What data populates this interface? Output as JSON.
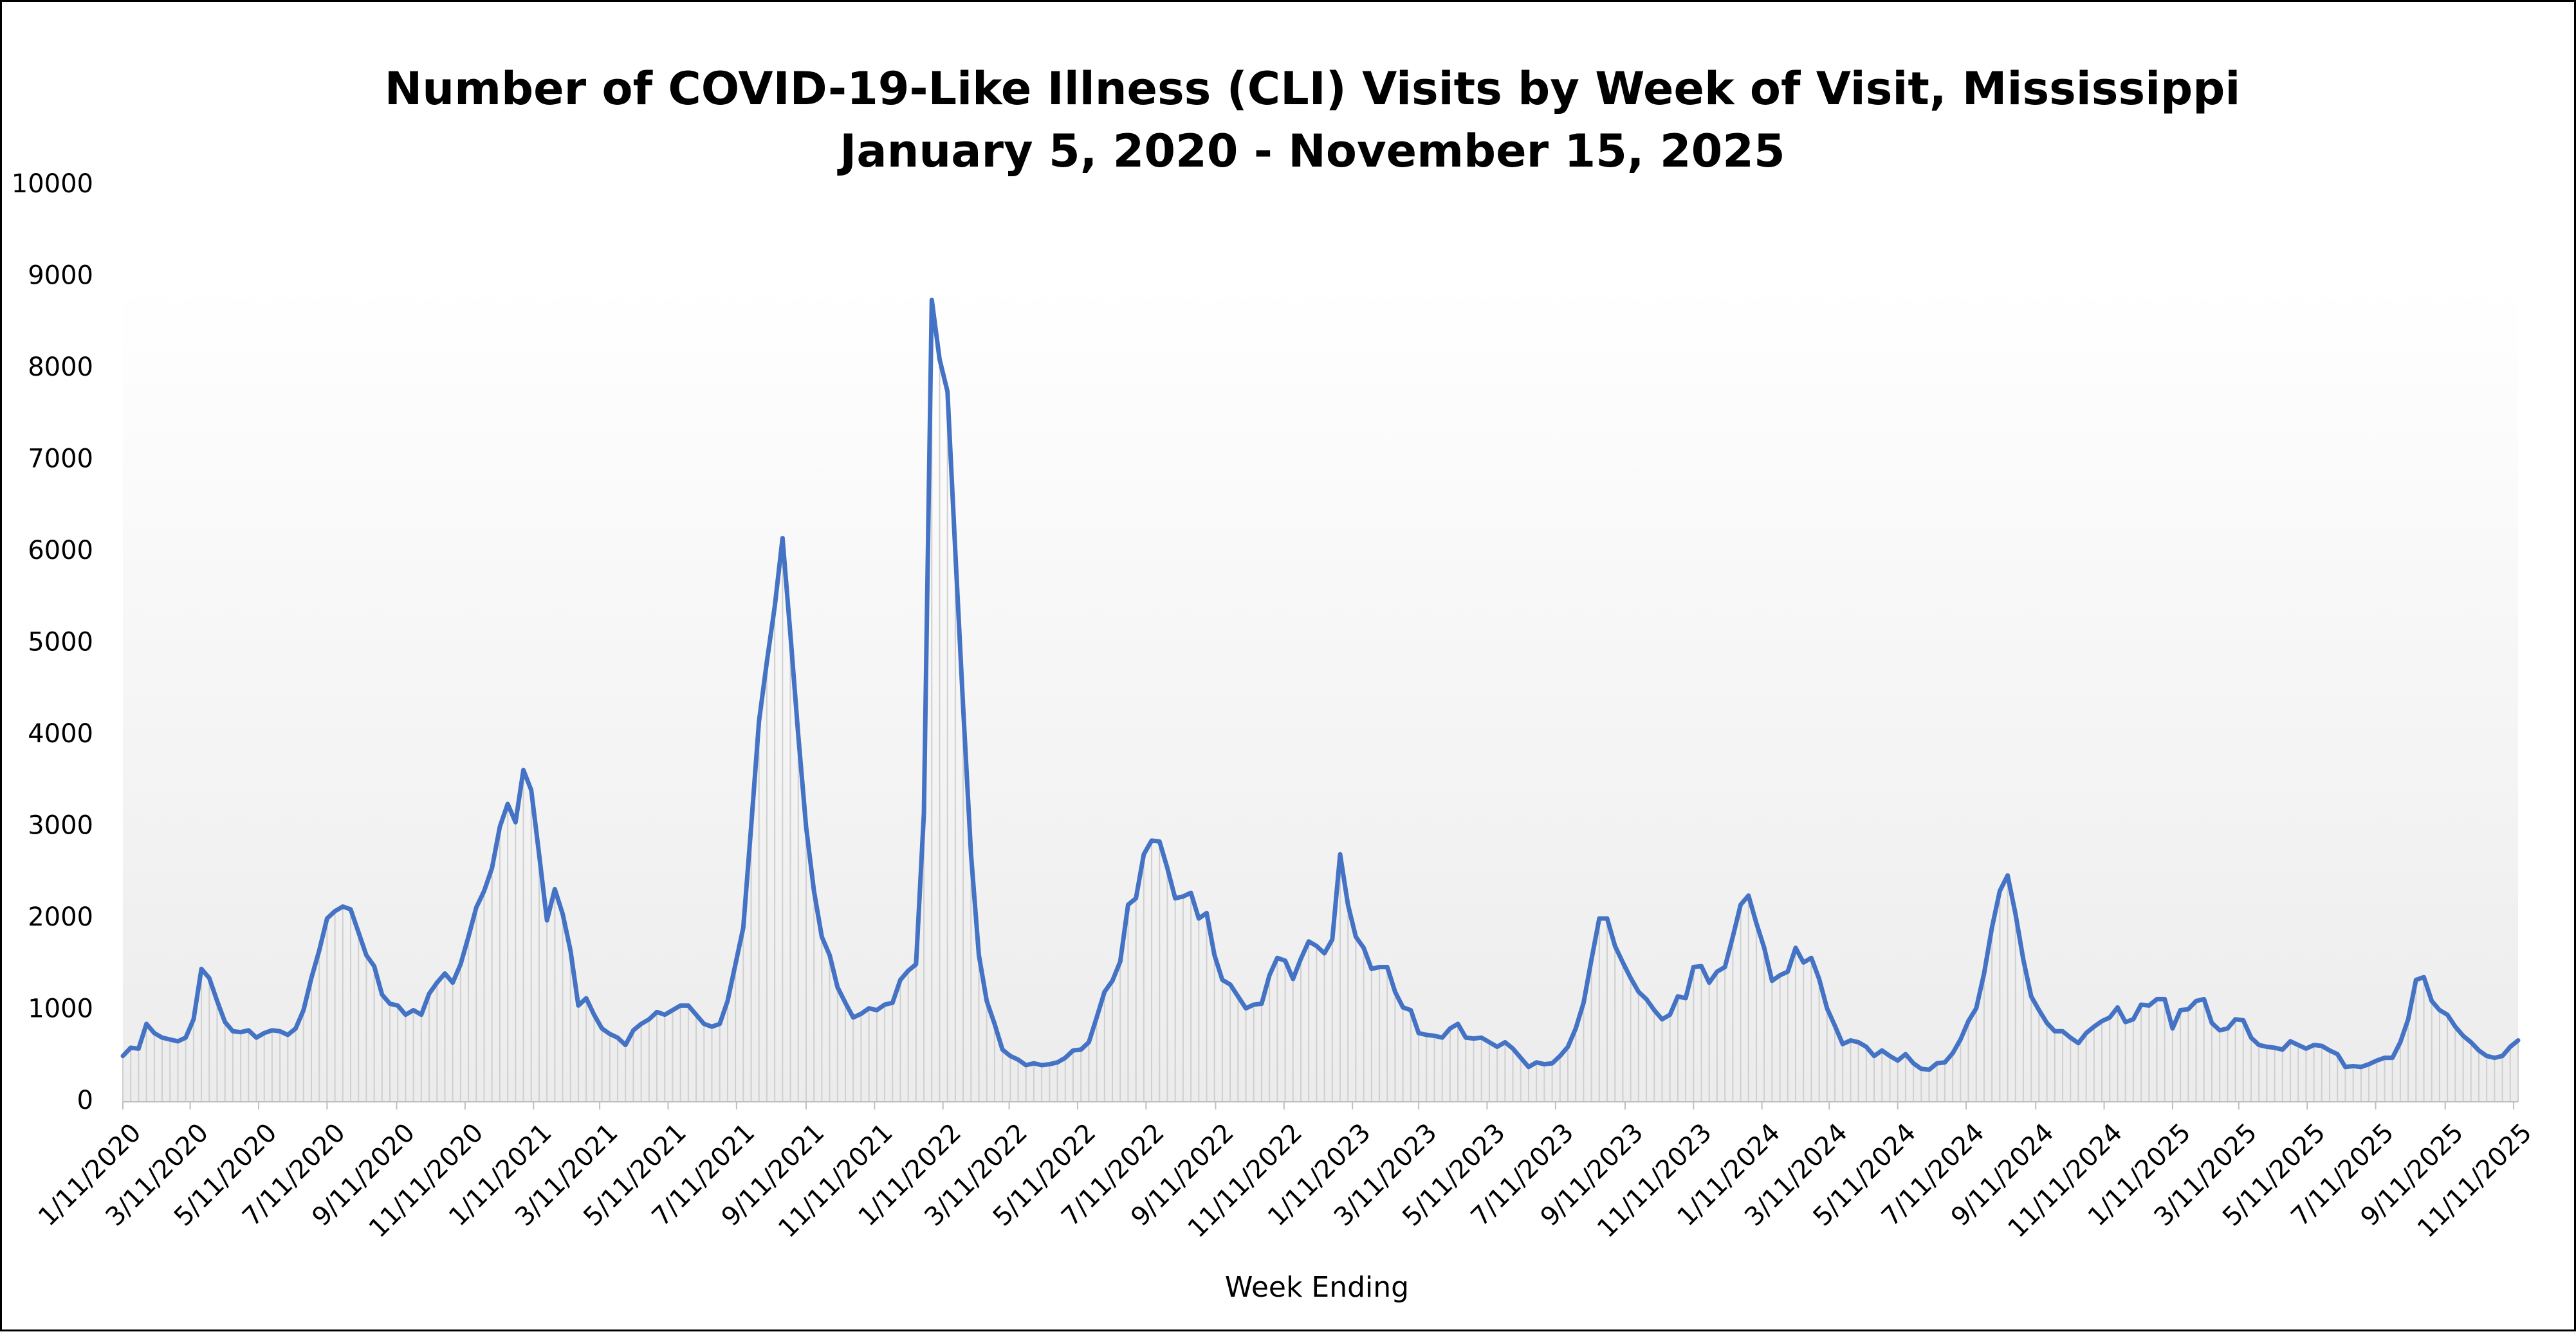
{
  "chart_data": {
    "type": "line",
    "title": "Number of COVID-19-Like Illness (CLI) Visits by Week of Visit, Mississippi",
    "subtitle": "January 5, 2020 - November 15, 2025",
    "x_axis_label": "Week Ending",
    "x": [
      "1/11/2020",
      "1/18/2020",
      "1/25/2020",
      "2/1/2020",
      "2/8/2020",
      "2/15/2020",
      "2/22/2020",
      "2/29/2020",
      "3/7/2020",
      "3/14/2020",
      "3/21/2020",
      "3/28/2020",
      "4/4/2020",
      "4/11/2020",
      "4/18/2020",
      "4/25/2020",
      "5/2/2020",
      "5/9/2020",
      "5/16/2020",
      "5/23/2020",
      "5/30/2020",
      "6/6/2020",
      "6/13/2020",
      "6/20/2020",
      "6/27/2020",
      "7/4/2020",
      "7/11/2020",
      "7/18/2020",
      "7/25/2020",
      "8/1/2020",
      "8/8/2020",
      "8/15/2020",
      "8/22/2020",
      "8/29/2020",
      "9/5/2020",
      "9/12/2020",
      "9/19/2020",
      "9/26/2020",
      "10/3/2020",
      "10/10/2020",
      "10/17/2020",
      "10/24/2020",
      "10/31/2020",
      "11/7/2020",
      "11/14/2020",
      "11/21/2020",
      "11/28/2020",
      "12/5/2020",
      "12/12/2020",
      "12/19/2020",
      "12/26/2020",
      "1/2/2021",
      "1/9/2021",
      "1/16/2021",
      "1/23/2021",
      "1/30/2021",
      "2/6/2021",
      "2/13/2021",
      "2/20/2021",
      "2/27/2021",
      "3/6/2021",
      "3/13/2021",
      "3/20/2021",
      "3/27/2021",
      "4/3/2021",
      "4/10/2021",
      "4/17/2021",
      "4/24/2021",
      "5/1/2021",
      "5/8/2021",
      "5/15/2021",
      "5/22/2021",
      "5/29/2021",
      "6/5/2021",
      "6/12/2021",
      "6/19/2021",
      "6/26/2021",
      "7/3/2021",
      "7/10/2021",
      "7/17/2021",
      "7/24/2021",
      "7/31/2021",
      "8/7/2021",
      "8/14/2021",
      "8/21/2021",
      "8/28/2021",
      "9/4/2021",
      "9/11/2021",
      "9/18/2021",
      "9/25/2021",
      "10/2/2021",
      "10/9/2021",
      "10/16/2021",
      "10/23/2021",
      "10/30/2021",
      "11/6/2021",
      "11/13/2021",
      "11/20/2021",
      "11/27/2021",
      "12/4/2021",
      "12/11/2021",
      "12/18/2021",
      "12/25/2021",
      "1/1/2022",
      "1/8/2022",
      "1/15/2022",
      "1/22/2022",
      "1/29/2022",
      "2/5/2022",
      "2/12/2022",
      "2/19/2022",
      "2/26/2022",
      "3/5/2022",
      "3/12/2022",
      "3/19/2022",
      "3/26/2022",
      "4/2/2022",
      "4/9/2022",
      "4/16/2022",
      "4/23/2022",
      "4/30/2022",
      "5/7/2022",
      "5/14/2022",
      "5/21/2022",
      "5/28/2022",
      "6/4/2022",
      "6/11/2022",
      "6/18/2022",
      "6/25/2022",
      "7/2/2022",
      "7/9/2022",
      "7/16/2022",
      "7/23/2022",
      "7/30/2022",
      "8/6/2022",
      "8/13/2022",
      "8/20/2022",
      "8/27/2022",
      "9/3/2022",
      "9/10/2022",
      "9/17/2022",
      "9/24/2022",
      "10/1/2022",
      "10/8/2022",
      "10/15/2022",
      "10/22/2022",
      "10/29/2022",
      "11/5/2022",
      "11/12/2022",
      "11/19/2022",
      "11/26/2022",
      "12/3/2022",
      "12/10/2022",
      "12/17/2022",
      "12/24/2022",
      "12/31/2022",
      "1/7/2023",
      "1/14/2023",
      "1/21/2023",
      "1/28/2023",
      "2/4/2023",
      "2/11/2023",
      "2/18/2023",
      "2/25/2023",
      "3/4/2023",
      "3/11/2023",
      "3/18/2023",
      "3/25/2023",
      "4/1/2023",
      "4/8/2023",
      "4/15/2023",
      "4/22/2023",
      "4/29/2023",
      "5/6/2023",
      "5/13/2023",
      "5/20/2023",
      "5/27/2023",
      "6/3/2023",
      "6/10/2023",
      "6/17/2023",
      "6/24/2023",
      "7/1/2023",
      "7/8/2023",
      "7/15/2023",
      "7/22/2023",
      "7/29/2023",
      "8/5/2023",
      "8/12/2023",
      "8/19/2023",
      "8/26/2023",
      "9/2/2023",
      "9/9/2023",
      "9/16/2023",
      "9/23/2023",
      "9/30/2023",
      "10/7/2023",
      "10/14/2023",
      "10/21/2023",
      "10/28/2023",
      "11/4/2023",
      "11/11/2023",
      "11/18/2023",
      "11/25/2023",
      "12/2/2023",
      "12/9/2023",
      "12/16/2023",
      "12/23/2023",
      "12/30/2023",
      "1/6/2024",
      "1/13/2024",
      "1/20/2024",
      "1/27/2024",
      "2/3/2024",
      "2/10/2024",
      "2/17/2024",
      "2/24/2024",
      "3/2/2024",
      "3/9/2024",
      "3/16/2024",
      "3/23/2024",
      "3/30/2024",
      "4/6/2024",
      "4/13/2024",
      "4/20/2024",
      "4/27/2024",
      "5/4/2024",
      "5/11/2024",
      "5/18/2024",
      "5/25/2024",
      "6/1/2024",
      "6/8/2024",
      "6/15/2024",
      "6/22/2024",
      "6/29/2024",
      "7/6/2024",
      "7/13/2024",
      "7/20/2024",
      "7/27/2024",
      "8/3/2024",
      "8/10/2024",
      "8/17/2024",
      "8/24/2024",
      "8/31/2024",
      "9/7/2024",
      "9/14/2024",
      "9/21/2024",
      "9/28/2024",
      "10/5/2024",
      "10/12/2024",
      "10/19/2024",
      "10/26/2024",
      "11/2/2024",
      "11/9/2024",
      "11/16/2024",
      "11/23/2024",
      "11/30/2024",
      "12/7/2024",
      "12/14/2024",
      "12/21/2024",
      "12/28/2024",
      "1/4/2025",
      "1/11/2025",
      "1/18/2025",
      "1/25/2025",
      "2/1/2025",
      "2/8/2025",
      "2/15/2025",
      "2/22/2025",
      "3/1/2025",
      "3/8/2025",
      "3/15/2025",
      "3/22/2025",
      "3/29/2025",
      "4/5/2025",
      "4/12/2025",
      "4/19/2025",
      "4/26/2025",
      "5/3/2025",
      "5/10/2025",
      "5/17/2025",
      "5/24/2025",
      "5/31/2025",
      "6/7/2025",
      "6/14/2025",
      "6/21/2025",
      "6/28/2025",
      "7/5/2025",
      "7/12/2025",
      "7/19/2025",
      "7/26/2025",
      "8/2/2025",
      "8/9/2025",
      "8/16/2025",
      "8/23/2025",
      "8/30/2025",
      "9/6/2025",
      "9/13/2025",
      "9/20/2025",
      "9/27/2025",
      "10/4/2025",
      "10/11/2025",
      "10/18/2025",
      "10/25/2025",
      "11/1/2025",
      "11/8/2025",
      "11/15/2025"
    ],
    "series": [
      {
        "name": "CLI Visits",
        "color": "#4472c4",
        "values": [
          500,
          590,
          580,
          850,
          750,
          700,
          680,
          660,
          700,
          900,
          1450,
          1350,
          1100,
          870,
          770,
          760,
          780,
          700,
          750,
          780,
          770,
          730,
          800,
          1000,
          1350,
          1650,
          2000,
          2080,
          2130,
          2100,
          1850,
          1600,
          1480,
          1170,
          1070,
          1050,
          950,
          1000,
          950,
          1180,
          1300,
          1400,
          1300,
          1500,
          1800,
          2120,
          2300,
          2550,
          3000,
          3250,
          3050,
          3620,
          3400,
          2700,
          1980,
          2320,
          2050,
          1650,
          1050,
          1130,
          950,
          800,
          740,
          700,
          620,
          780,
          850,
          900,
          980,
          950,
          1000,
          1050,
          1050,
          950,
          850,
          820,
          850,
          1100,
          1500,
          1900,
          3000,
          4150,
          4800,
          5400,
          6150,
          5100,
          4000,
          3000,
          2300,
          1800,
          1600,
          1250,
          1080,
          920,
          960,
          1020,
          1000,
          1060,
          1080,
          1330,
          1430,
          1500,
          3150,
          8750,
          8100,
          7750,
          6000,
          4300,
          2700,
          1600,
          1100,
          850,
          570,
          500,
          460,
          400,
          420,
          400,
          410,
          430,
          480,
          560,
          570,
          650,
          920,
          1200,
          1320,
          1530,
          2150,
          2220,
          2700,
          2850,
          2840,
          2550,
          2220,
          2240,
          2280,
          2000,
          2060,
          1600,
          1330,
          1280,
          1150,
          1020,
          1060,
          1070,
          1380,
          1570,
          1540,
          1340,
          1560,
          1750,
          1700,
          1620,
          1770,
          2700,
          2150,
          1800,
          1680,
          1450,
          1470,
          1470,
          1200,
          1030,
          1000,
          750,
          730,
          720,
          700,
          800,
          850,
          700,
          690,
          700,
          650,
          600,
          650,
          580,
          480,
          380,
          430,
          410,
          420,
          500,
          600,
          800,
          1080,
          1550,
          2000,
          2000,
          1700,
          1520,
          1350,
          1200,
          1120,
          1000,
          900,
          950,
          1150,
          1130,
          1470,
          1480,
          1300,
          1420,
          1470,
          1800,
          2150,
          2250,
          1950,
          1680,
          1320,
          1380,
          1420,
          1680,
          1520,
          1570,
          1340,
          1020,
          830,
          630,
          670,
          650,
          600,
          500,
          560,
          500,
          450,
          520,
          420,
          360,
          350,
          420,
          430,
          530,
          680,
          880,
          1020,
          1400,
          1900,
          2300,
          2470,
          2050,
          1550,
          1150,
          1000,
          860,
          770,
          770,
          700,
          640,
          750,
          820,
          880,
          920,
          1030,
          870,
          900,
          1060,
          1050,
          1120,
          1120,
          800,
          1000,
          1010,
          1100,
          1120,
          860,
          780,
          800,
          900,
          890,
          700,
          620,
          600,
          590,
          570,
          660,
          620,
          580,
          620,
          610,
          560,
          520,
          380,
          390,
          380,
          410,
          450,
          480,
          480,
          650,
          900,
          1330,
          1360,
          1100,
          1000,
          950,
          820,
          720,
          650,
          560,
          500,
          480,
          500,
          600,
          670
        ]
      }
    ],
    "xlim": [
      "1/11/2020",
      "11/15/2025"
    ],
    "xticks": [
      "1/11/2020",
      "3/11/2020",
      "5/11/2020",
      "7/11/2020",
      "9/11/2020",
      "11/11/2020",
      "1/11/2021",
      "3/11/2021",
      "5/11/2021",
      "7/11/2021",
      "9/11/2021",
      "11/11/2021",
      "1/11/2022",
      "3/11/2022",
      "5/11/2022",
      "7/11/2022",
      "9/11/2022",
      "11/11/2022",
      "1/11/2023",
      "3/11/2023",
      "5/11/2023",
      "7/11/2023",
      "9/11/2023",
      "11/11/2023",
      "1/11/2024",
      "3/11/2024",
      "5/11/2024",
      "7/11/2024",
      "9/11/2024",
      "11/11/2024",
      "1/11/2025",
      "3/11/2025",
      "5/11/2025",
      "7/11/2025",
      "9/11/2025",
      "11/11/2025"
    ],
    "ylim": [
      0,
      10000
    ],
    "yticks": [
      0,
      1000,
      2000,
      3000,
      4000,
      5000,
      6000,
      7000,
      8000,
      9000,
      10000
    ],
    "grid": false,
    "drop_lines": true,
    "legend": false
  }
}
